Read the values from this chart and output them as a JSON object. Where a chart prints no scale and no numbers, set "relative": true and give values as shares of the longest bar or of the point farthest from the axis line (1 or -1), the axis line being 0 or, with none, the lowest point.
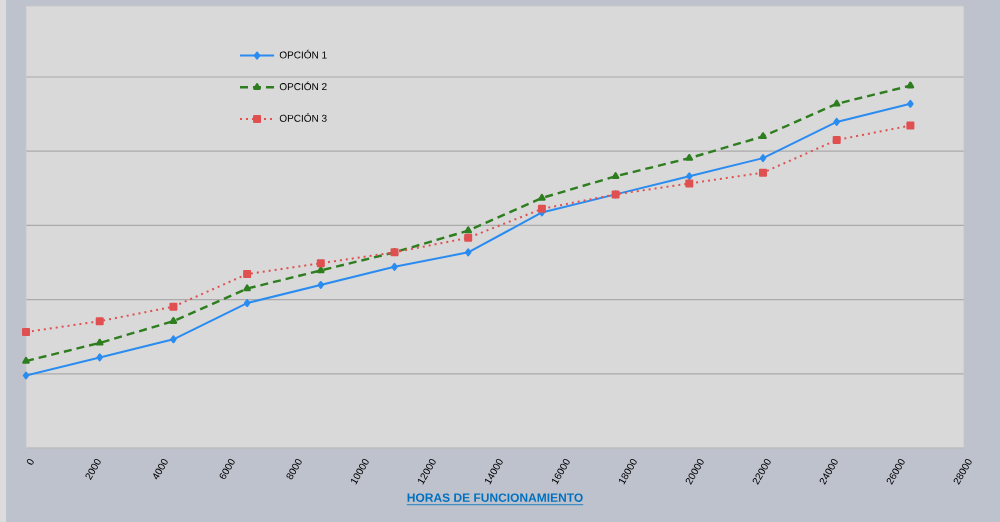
{
  "chart_data": {
    "type": "line",
    "relative": true,
    "xlabel": "HORAS DE FUNCIONAMIENTO",
    "xlim": [
      0,
      28000
    ],
    "xticks": [
      0,
      2000,
      4000,
      6000,
      8000,
      10000,
      12000,
      14000,
      16000,
      18000,
      20000,
      22000,
      24000,
      26000,
      28000
    ],
    "x": [
      0,
      2200,
      4400,
      6600,
      8800,
      11000,
      13200,
      15400,
      17600,
      19800,
      22000,
      24200,
      26400
    ],
    "grid": "y",
    "legend": "top left",
    "series": [
      {
        "name": "OPCIÓN 1",
        "color": "#2a8cf0",
        "marker": "diamond",
        "line_style": "solid",
        "values": [
          0.2,
          0.25,
          0.3,
          0.4,
          0.45,
          0.5,
          0.54,
          0.65,
          0.7,
          0.75,
          0.8,
          0.9,
          0.95
        ]
      },
      {
        "name": "OPCIÓN 2",
        "color": "#2e7d1f",
        "marker": "triangle",
        "line_style": "dashed",
        "values": [
          0.24,
          0.29,
          0.35,
          0.44,
          0.49,
          0.54,
          0.6,
          0.69,
          0.75,
          0.8,
          0.86,
          0.95,
          1.0
        ]
      },
      {
        "name": "OPCIÓN 3",
        "color": "#e05050",
        "marker": "square",
        "line_style": "dotted",
        "values": [
          0.32,
          0.35,
          0.39,
          0.48,
          0.51,
          0.54,
          0.58,
          0.66,
          0.7,
          0.73,
          0.76,
          0.85,
          0.89
        ]
      }
    ]
  }
}
